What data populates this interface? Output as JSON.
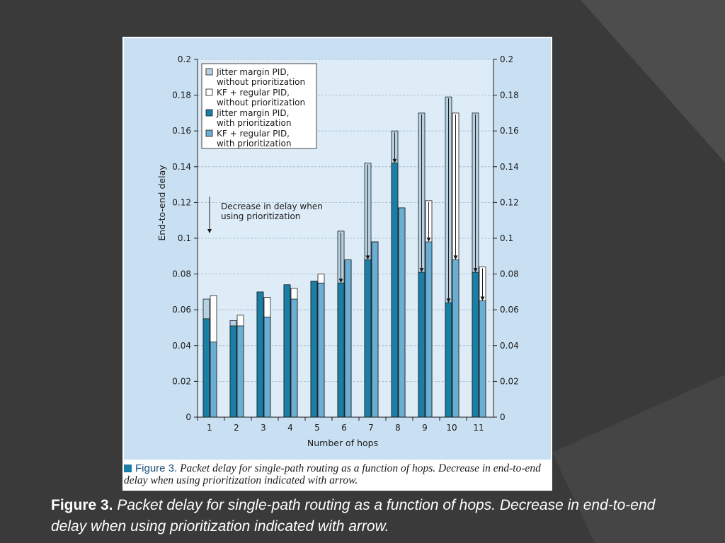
{
  "colors": {
    "slide_bg": "#3a3a3a",
    "slide_shape": "#4a4a4a",
    "plot_bg": "#deecf7",
    "panel_bg": "#c9e0f2",
    "jitter_without": "#b6d1e4",
    "kf_without": "#ffffff",
    "jitter_with": "#1a7fa6",
    "kf_with": "#6aaed3"
  },
  "inner_caption": {
    "label": "Figure 3.",
    "text": "Packet delay for single-path routing as a function of hops. Decrease in end-to-end delay when using prioritization indicated with arrow."
  },
  "slide_caption": {
    "label": "Figure 3.",
    "text": "Packet delay for single-path routing as a function of hops. Decrease in end-to-end delay when using prioritization indicated with arrow."
  },
  "chart_data": {
    "type": "bar",
    "xlabel": "Number of hops",
    "ylabel": "End-to-end delay",
    "ylim": [
      0,
      0.2
    ],
    "yticks": [
      0,
      0.02,
      0.04,
      0.06,
      0.08,
      0.1,
      0.12,
      0.14,
      0.16,
      0.18,
      0.2
    ],
    "ytick_labels": [
      "0",
      "0.02",
      "0.04",
      "0.06",
      "0.08",
      "0.1",
      "0.12",
      "0.14",
      "0.16",
      "0.18",
      "0.2"
    ],
    "right_axis": true,
    "grid": "horizontal dashed",
    "legend_position": "top-left",
    "categories": [
      "1",
      "2",
      "3",
      "4",
      "5",
      "6",
      "7",
      "8",
      "9",
      "10",
      "11"
    ],
    "series": [
      {
        "name": "Jitter margin PID, without prioritization",
        "legend_lines": [
          "Jitter margin PID,",
          "without prioritization"
        ],
        "color": "#b6d1e4",
        "values": [
          0.066,
          0.054,
          0.07,
          0.074,
          0.076,
          0.104,
          0.142,
          0.16,
          0.17,
          0.179,
          0.17
        ]
      },
      {
        "name": "KF + regular PID, without prioritization",
        "legend_lines": [
          "KF + regular PID,",
          "without prioritization"
        ],
        "color": "#ffffff",
        "values": [
          0.068,
          0.057,
          0.067,
          0.072,
          0.08,
          0.088,
          0.098,
          0.117,
          0.121,
          0.17,
          0.084
        ]
      },
      {
        "name": "Jitter margin PID, with prioritization",
        "legend_lines": [
          "Jitter margin PID,",
          "with prioritization"
        ],
        "color": "#1a7fa6",
        "values": [
          0.055,
          0.051,
          0.07,
          0.074,
          0.076,
          0.075,
          0.088,
          0.142,
          0.081,
          0.064,
          0.081
        ]
      },
      {
        "name": "KF + regular PID, with prioritization",
        "legend_lines": [
          "KF + regular PID,",
          "with prioritization"
        ],
        "color": "#6aaed3",
        "values": [
          0.042,
          0.051,
          0.056,
          0.066,
          0.075,
          0.088,
          0.098,
          0.117,
          0.098,
          0.088,
          0.065
        ]
      }
    ],
    "annotation": {
      "lines": [
        "Decrease in delay when",
        "using prioritization"
      ]
    },
    "arrows": [
      {
        "category": "6",
        "series": "Jitter margin PID",
        "from": 0.104,
        "to": 0.075
      },
      {
        "category": "7",
        "series": "Jitter margin PID",
        "from": 0.142,
        "to": 0.088
      },
      {
        "category": "8",
        "series": "Jitter margin PID",
        "from": 0.16,
        "to": 0.142
      },
      {
        "category": "9",
        "series": "Jitter margin PID",
        "from": 0.17,
        "to": 0.081
      },
      {
        "category": "9",
        "series": "KF + regular PID",
        "from": 0.121,
        "to": 0.098
      },
      {
        "category": "10",
        "series": "Jitter margin PID",
        "from": 0.179,
        "to": 0.064
      },
      {
        "category": "10",
        "series": "KF + regular PID",
        "from": 0.17,
        "to": 0.088
      },
      {
        "category": "11",
        "series": "Jitter margin PID",
        "from": 0.17,
        "to": 0.081
      },
      {
        "category": "11",
        "series": "KF + regular PID",
        "from": 0.084,
        "to": 0.065
      }
    ]
  }
}
